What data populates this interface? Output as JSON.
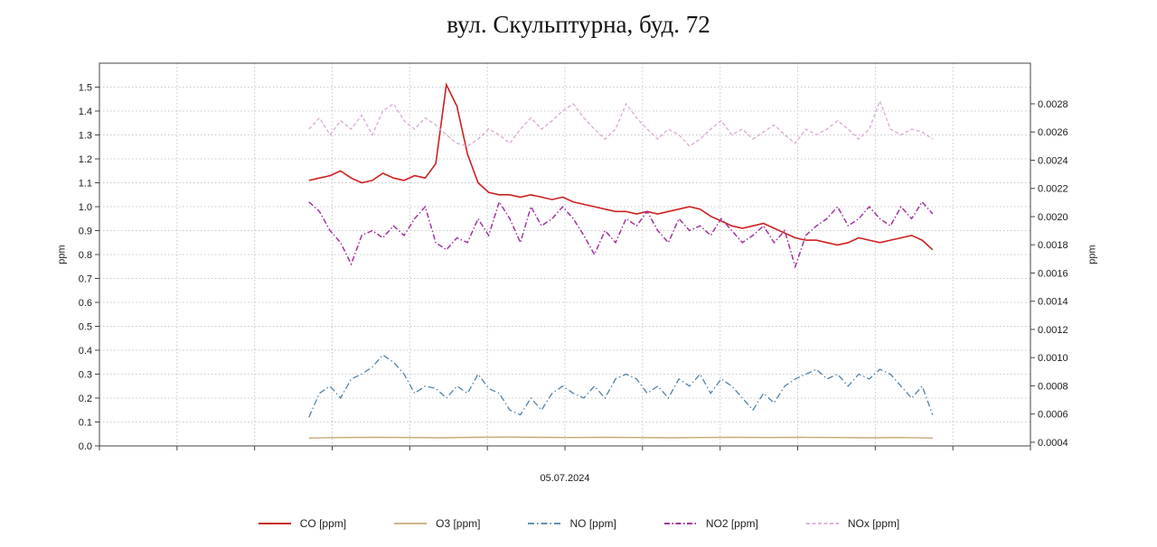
{
  "title": "вул. Скульптурна, буд. 72",
  "chart_data": {
    "type": "line",
    "title": "вул. Скульптурна, буд. 72",
    "x_tick_label": "05.07.2024",
    "grid": {
      "vertical_divisions": 12,
      "color": "#c8c8c8",
      "on": true
    },
    "data_span_fraction": [
      0.225,
      0.895
    ],
    "left_axis": {
      "label": "ppm",
      "min": 0,
      "max": 1.6,
      "decimals": 1,
      "ticks": [
        0.0,
        0.1,
        0.2,
        0.3,
        0.4,
        0.5,
        0.6,
        0.7,
        0.8,
        0.9,
        1.0,
        1.1,
        1.2,
        1.3,
        1.4,
        1.5
      ]
    },
    "right_axis": {
      "label": "ppm",
      "min": 0.000374,
      "max": 0.003088,
      "decimals": 4,
      "ticks": [
        0.0004,
        0.0006,
        0.0008,
        0.001,
        0.0012,
        0.0014,
        0.0016,
        0.0018,
        0.002,
        0.0022,
        0.0024,
        0.0026,
        0.0028
      ]
    },
    "legend_position": "bottom-center",
    "series": [
      {
        "name": "CO [ppm]",
        "axis": "left",
        "color": "#cd2120",
        "dash": "",
        "width": 1.6,
        "values": [
          1.11,
          1.12,
          1.13,
          1.15,
          1.12,
          1.1,
          1.11,
          1.14,
          1.12,
          1.11,
          1.13,
          1.12,
          1.18,
          1.51,
          1.42,
          1.22,
          1.1,
          1.06,
          1.05,
          1.05,
          1.04,
          1.05,
          1.04,
          1.03,
          1.04,
          1.02,
          1.01,
          1.0,
          0.99,
          0.98,
          0.98,
          0.97,
          0.98,
          0.97,
          0.98,
          0.99,
          1.0,
          0.99,
          0.96,
          0.94,
          0.92,
          0.91,
          0.92,
          0.93,
          0.91,
          0.89,
          0.87,
          0.86,
          0.86,
          0.85,
          0.84,
          0.85,
          0.87,
          0.86,
          0.85,
          0.86,
          0.87,
          0.88,
          0.86,
          0.82
        ]
      },
      {
        "name": "O3 [ppm]",
        "axis": "left",
        "color": "#c6a878",
        "dash": "",
        "width": 1.4,
        "values": [
          0.033,
          0.035,
          0.036,
          0.035,
          0.034,
          0.036,
          0.037,
          0.036,
          0.035,
          0.036,
          0.035,
          0.034,
          0.035,
          0.036,
          0.035,
          0.036,
          0.035,
          0.034,
          0.035,
          0.033
        ]
      },
      {
        "name": "NO [ppm]",
        "axis": "left",
        "color": "#4f81a5",
        "dash": "7 3 1.5 3",
        "width": 1.3,
        "values": [
          0.12,
          0.22,
          0.25,
          0.2,
          0.28,
          0.3,
          0.33,
          0.38,
          0.35,
          0.3,
          0.22,
          0.25,
          0.24,
          0.2,
          0.25,
          0.22,
          0.3,
          0.24,
          0.22,
          0.15,
          0.13,
          0.2,
          0.15,
          0.22,
          0.25,
          0.22,
          0.2,
          0.25,
          0.2,
          0.28,
          0.3,
          0.28,
          0.22,
          0.25,
          0.2,
          0.28,
          0.25,
          0.3,
          0.22,
          0.28,
          0.25,
          0.2,
          0.15,
          0.22,
          0.18,
          0.25,
          0.28,
          0.3,
          0.32,
          0.28,
          0.3,
          0.25,
          0.3,
          0.28,
          0.32,
          0.3,
          0.25,
          0.2,
          0.25,
          0.13
        ]
      },
      {
        "name": "NO2 [ppm]",
        "axis": "left",
        "color": "#a233a0",
        "dash": "6 2.5 1.5 2.5",
        "width": 1.5,
        "values": [
          1.02,
          0.98,
          0.9,
          0.85,
          0.76,
          0.88,
          0.9,
          0.87,
          0.92,
          0.88,
          0.95,
          1.0,
          0.85,
          0.82,
          0.87,
          0.85,
          0.95,
          0.88,
          1.02,
          0.95,
          0.85,
          1.0,
          0.92,
          0.95,
          1.0,
          0.95,
          0.88,
          0.8,
          0.9,
          0.85,
          0.95,
          0.92,
          0.98,
          0.9,
          0.85,
          0.95,
          0.9,
          0.92,
          0.88,
          0.95,
          0.9,
          0.85,
          0.88,
          0.92,
          0.85,
          0.9,
          0.75,
          0.88,
          0.92,
          0.95,
          1.0,
          0.92,
          0.95,
          1.0,
          0.95,
          0.92,
          1.0,
          0.95,
          1.02,
          0.97
        ]
      },
      {
        "name": "NOx [ppm]",
        "axis": "right",
        "color": "#d9a9d6",
        "dash": "4 2.5",
        "width": 1.3,
        "values": [
          0.00262,
          0.0027,
          0.00258,
          0.00268,
          0.00262,
          0.00272,
          0.00258,
          0.00275,
          0.0028,
          0.00268,
          0.00262,
          0.0027,
          0.00265,
          0.00258,
          0.00252,
          0.0025,
          0.00255,
          0.00262,
          0.00258,
          0.00252,
          0.00262,
          0.0027,
          0.00262,
          0.00268,
          0.00275,
          0.0028,
          0.0027,
          0.00262,
          0.00255,
          0.00262,
          0.0028,
          0.0027,
          0.00262,
          0.00255,
          0.00262,
          0.00258,
          0.0025,
          0.00255,
          0.00262,
          0.00268,
          0.00258,
          0.00262,
          0.00255,
          0.0026,
          0.00265,
          0.00258,
          0.00252,
          0.00262,
          0.00258,
          0.00262,
          0.00268,
          0.00262,
          0.00255,
          0.00262,
          0.00282,
          0.00262,
          0.00258,
          0.00262,
          0.0026,
          0.00255
        ]
      }
    ]
  }
}
